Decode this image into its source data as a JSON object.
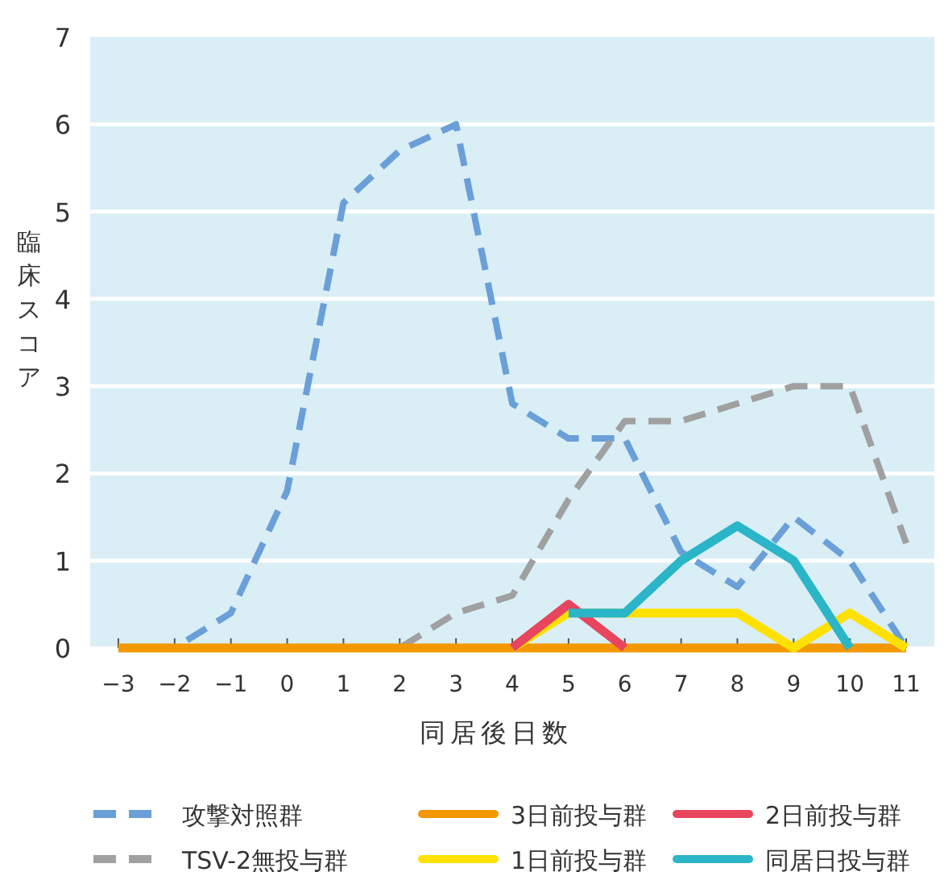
{
  "chart_data": {
    "type": "line",
    "xlabel": "同居後日数",
    "ylabel": "臨床スコア",
    "x": [
      -3,
      -2,
      -1,
      0,
      1,
      2,
      3,
      4,
      5,
      6,
      7,
      8,
      9,
      10,
      11
    ],
    "xlim": [
      -3.5,
      11.5
    ],
    "ylim": [
      0,
      7
    ],
    "xticks": [
      {
        "value": -3,
        "label": "−3"
      },
      {
        "value": -2,
        "label": "−2"
      },
      {
        "value": -1,
        "label": "−1"
      },
      0,
      1,
      2,
      3,
      4,
      5,
      6,
      7,
      8,
      9,
      10,
      11
    ],
    "yticks": [
      0,
      1,
      2,
      3,
      4,
      5,
      6,
      7
    ],
    "grid": "y",
    "legend": "bottom",
    "series": [
      {
        "name": "攻撃対照群",
        "color": "#6a9fd8",
        "line_style": "dashed",
        "values": [
          0,
          0,
          0.4,
          1.8,
          5.1,
          5.7,
          6.0,
          2.8,
          2.4,
          2.4,
          1.1,
          0.7,
          1.5,
          1.0,
          0
        ]
      },
      {
        "name": "TSV-2無投与群",
        "color": "#a0a0a0",
        "line_style": "dashed",
        "values": [
          0,
          0,
          0,
          0,
          0,
          0,
          0.4,
          0.6,
          1.7,
          2.6,
          2.6,
          2.8,
          3.0,
          3.0,
          1.2
        ]
      },
      {
        "name": "3日前投与群",
        "color": "#f39800",
        "line_style": "solid",
        "values": [
          0,
          0,
          0,
          0,
          0,
          0,
          0,
          0,
          0,
          0,
          0,
          0,
          0,
          0,
          0
        ]
      },
      {
        "name": "1日前投与群",
        "color": "#ffe100",
        "line_style": "solid",
        "values": [
          null,
          null,
          null,
          null,
          null,
          null,
          null,
          0,
          0.4,
          0.4,
          0.4,
          0.4,
          0,
          0.4,
          0
        ]
      },
      {
        "name": "2日前投与群",
        "color": "#e8455e",
        "line_style": "solid",
        "values": [
          null,
          null,
          null,
          null,
          null,
          null,
          null,
          0,
          0.5,
          0,
          null,
          null,
          null,
          null,
          null
        ]
      },
      {
        "name": "同居日投与群",
        "color": "#2bb5c8",
        "line_style": "solid",
        "values": [
          null,
          null,
          null,
          null,
          null,
          null,
          null,
          null,
          0.4,
          0.4,
          1.0,
          1.4,
          1.0,
          0,
          null
        ]
      }
    ]
  }
}
